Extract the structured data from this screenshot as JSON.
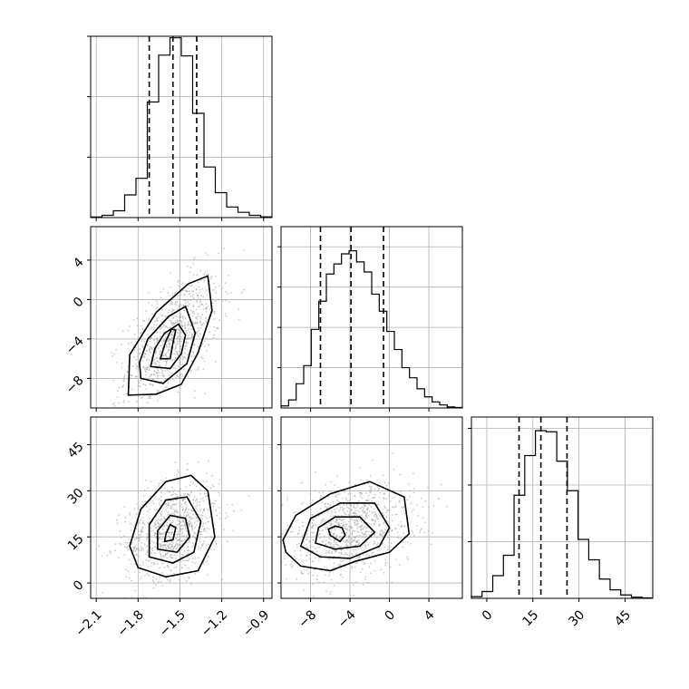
{
  "chart_data": {
    "type": "corner",
    "parameters": [
      {
        "ticks": [
          -2.1,
          -1.8,
          -1.5,
          -1.2,
          -0.9
        ],
        "tick_labels": [
          "−2.1",
          "−1.8",
          "−1.5",
          "−1.2",
          "−0.9"
        ],
        "range": [
          -2.14,
          -0.84
        ],
        "quantiles": [
          -1.72,
          -1.55,
          -1.38
        ],
        "hist_y_ticks": [
          800,
          1600,
          2400
        ],
        "hist_ylim": [
          0,
          2400
        ],
        "hist_counts": [
          8,
          30,
          90,
          300,
          520,
          1530,
          2150,
          2380,
          2140,
          1380,
          670,
          330,
          140,
          70,
          30,
          10
        ]
      },
      {
        "ticks": [
          -8,
          -4,
          0,
          4
        ],
        "tick_labels": [
          "−8",
          "−4",
          "0",
          "4"
        ],
        "range": [
          -11.0,
          7.4
        ],
        "quantiles": [
          -7.0,
          -3.9,
          -0.6
        ],
        "hist_y_ticks": [
          400,
          800,
          1200,
          1600
        ],
        "hist_ylim": [
          0,
          1800
        ],
        "hist_counts": [
          20,
          80,
          240,
          420,
          780,
          1060,
          1330,
          1430,
          1530,
          1560,
          1450,
          1350,
          1130,
          960,
          760,
          580,
          400,
          300,
          190,
          110,
          60,
          30,
          10,
          5
        ]
      },
      {
        "ticks": [
          0,
          15,
          30,
          45
        ],
        "tick_labels": [
          "0",
          "15",
          "30",
          "45"
        ],
        "range": [
          -5.0,
          54.0
        ],
        "quantiles": [
          10.5,
          17.6,
          26.1
        ],
        "hist_y_ticks": [
          500,
          1000,
          1500
        ],
        "hist_ylim": [
          0,
          1600
        ],
        "hist_counts": [
          15,
          60,
          200,
          380,
          910,
          1260,
          1480,
          1470,
          1210,
          950,
          520,
          340,
          170,
          75,
          30,
          10,
          4
        ]
      }
    ],
    "pairs": [
      {
        "row": 1,
        "col": 0,
        "x_param": 0,
        "y_param": 1,
        "correlation": 0.55,
        "contours": [
          {
            "shade": "#e6e6e6",
            "points": [
              [
                -1.87,
                -9.7
              ],
              [
                -1.67,
                -9.6
              ],
              [
                -1.49,
                -8.6
              ],
              [
                -1.37,
                -5.4
              ],
              [
                -1.27,
                -1.1
              ],
              [
                -1.3,
                2.4
              ],
              [
                -1.44,
                1.6
              ],
              [
                -1.67,
                -1.3
              ],
              [
                -1.86,
                -5.6
              ]
            ]
          },
          {
            "shade": "#bfbfbf",
            "points": [
              [
                -1.78,
                -8.0
              ],
              [
                -1.62,
                -8.5
              ],
              [
                -1.45,
                -6.5
              ],
              [
                -1.39,
                -3.4
              ],
              [
                -1.46,
                -0.7
              ],
              [
                -1.58,
                -1.7
              ],
              [
                -1.73,
                -4.0
              ],
              [
                -1.79,
                -6.4
              ]
            ]
          },
          {
            "shade": "#8c8c8c",
            "points": [
              [
                -1.71,
                -6.8
              ],
              [
                -1.57,
                -7.0
              ],
              [
                -1.49,
                -5.5
              ],
              [
                -1.46,
                -3.6
              ],
              [
                -1.51,
                -2.5
              ],
              [
                -1.61,
                -3.4
              ],
              [
                -1.68,
                -5.0
              ]
            ]
          },
          {
            "shade": "#202020",
            "points": [
              [
                -1.64,
                -6.0
              ],
              [
                -1.57,
                -6.0
              ],
              [
                -1.55,
                -4.4
              ],
              [
                -1.53,
                -3.1
              ],
              [
                -1.56,
                -3.0
              ],
              [
                -1.6,
                -4.2
              ]
            ]
          }
        ]
      },
      {
        "row": 2,
        "col": 0,
        "x_param": 0,
        "y_param": 2,
        "correlation": 0.3,
        "contours": [
          {
            "shade": "#e6e6e6",
            "points": [
              [
                -1.8,
                5.0
              ],
              [
                -1.6,
                2.0
              ],
              [
                -1.37,
                4.0
              ],
              [
                -1.25,
                15.0
              ],
              [
                -1.3,
                30.0
              ],
              [
                -1.42,
                35.0
              ],
              [
                -1.6,
                33.0
              ],
              [
                -1.78,
                24.0
              ],
              [
                -1.86,
                12.0
              ]
            ]
          },
          {
            "shade": "#bfbfbf",
            "points": [
              [
                -1.72,
                8.5
              ],
              [
                -1.55,
                6.5
              ],
              [
                -1.4,
                10.0
              ],
              [
                -1.35,
                20.0
              ],
              [
                -1.45,
                28.0
              ],
              [
                -1.6,
                27.0
              ],
              [
                -1.72,
                19.0
              ]
            ]
          },
          {
            "shade": "#8c8c8c",
            "points": [
              [
                -1.66,
                11.0
              ],
              [
                -1.52,
                10.0
              ],
              [
                -1.43,
                15.0
              ],
              [
                -1.46,
                21.0
              ],
              [
                -1.57,
                22.0
              ],
              [
                -1.66,
                17.0
              ]
            ]
          },
          {
            "shade": "#202020",
            "points": [
              [
                -1.61,
                13.5
              ],
              [
                -1.55,
                14.0
              ],
              [
                -1.53,
                18.0
              ],
              [
                -1.57,
                19.0
              ],
              [
                -1.6,
                16.0
              ]
            ]
          }
        ]
      },
      {
        "row": 2,
        "col": 1,
        "x_param": 1,
        "y_param": 2,
        "correlation": 0.25,
        "contours": [
          {
            "shade": "#e6e6e6",
            "points": [
              [
                -10.5,
                10.0
              ],
              [
                -9.0,
                5.5
              ],
              [
                -6.0,
                4.0
              ],
              [
                -3.5,
                7.0
              ],
              [
                0.0,
                10.0
              ],
              [
                2.0,
                16.0
              ],
              [
                1.5,
                28.0
              ],
              [
                -2.0,
                33.0
              ],
              [
                -6.0,
                29.0
              ],
              [
                -9.5,
                22.0
              ],
              [
                -10.8,
                14.0
              ]
            ]
          },
          {
            "shade": "#bfbfbf",
            "points": [
              [
                -9.0,
                12.0
              ],
              [
                -7.0,
                8.5
              ],
              [
                -4.0,
                8.0
              ],
              [
                -1.0,
                12.0
              ],
              [
                0.0,
                18.0
              ],
              [
                -1.5,
                26.0
              ],
              [
                -5.0,
                26.0
              ],
              [
                -8.0,
                21.0
              ]
            ]
          },
          {
            "shade": "#8c8c8c",
            "points": [
              [
                -7.5,
                13.0
              ],
              [
                -5.5,
                11.0
              ],
              [
                -3.0,
                12.0
              ],
              [
                -1.5,
                16.5
              ],
              [
                -3.0,
                21.5
              ],
              [
                -5.5,
                21.5
              ],
              [
                -7.2,
                18.0
              ]
            ]
          },
          {
            "shade": "#202020",
            "points": [
              [
                -6.0,
                15.5
              ],
              [
                -5.0,
                13.5
              ],
              [
                -4.5,
                15.5
              ],
              [
                -4.8,
                18.0
              ],
              [
                -5.5,
                18.5
              ],
              [
                -6.2,
                17.5
              ]
            ]
          }
        ]
      }
    ],
    "grid": true
  }
}
